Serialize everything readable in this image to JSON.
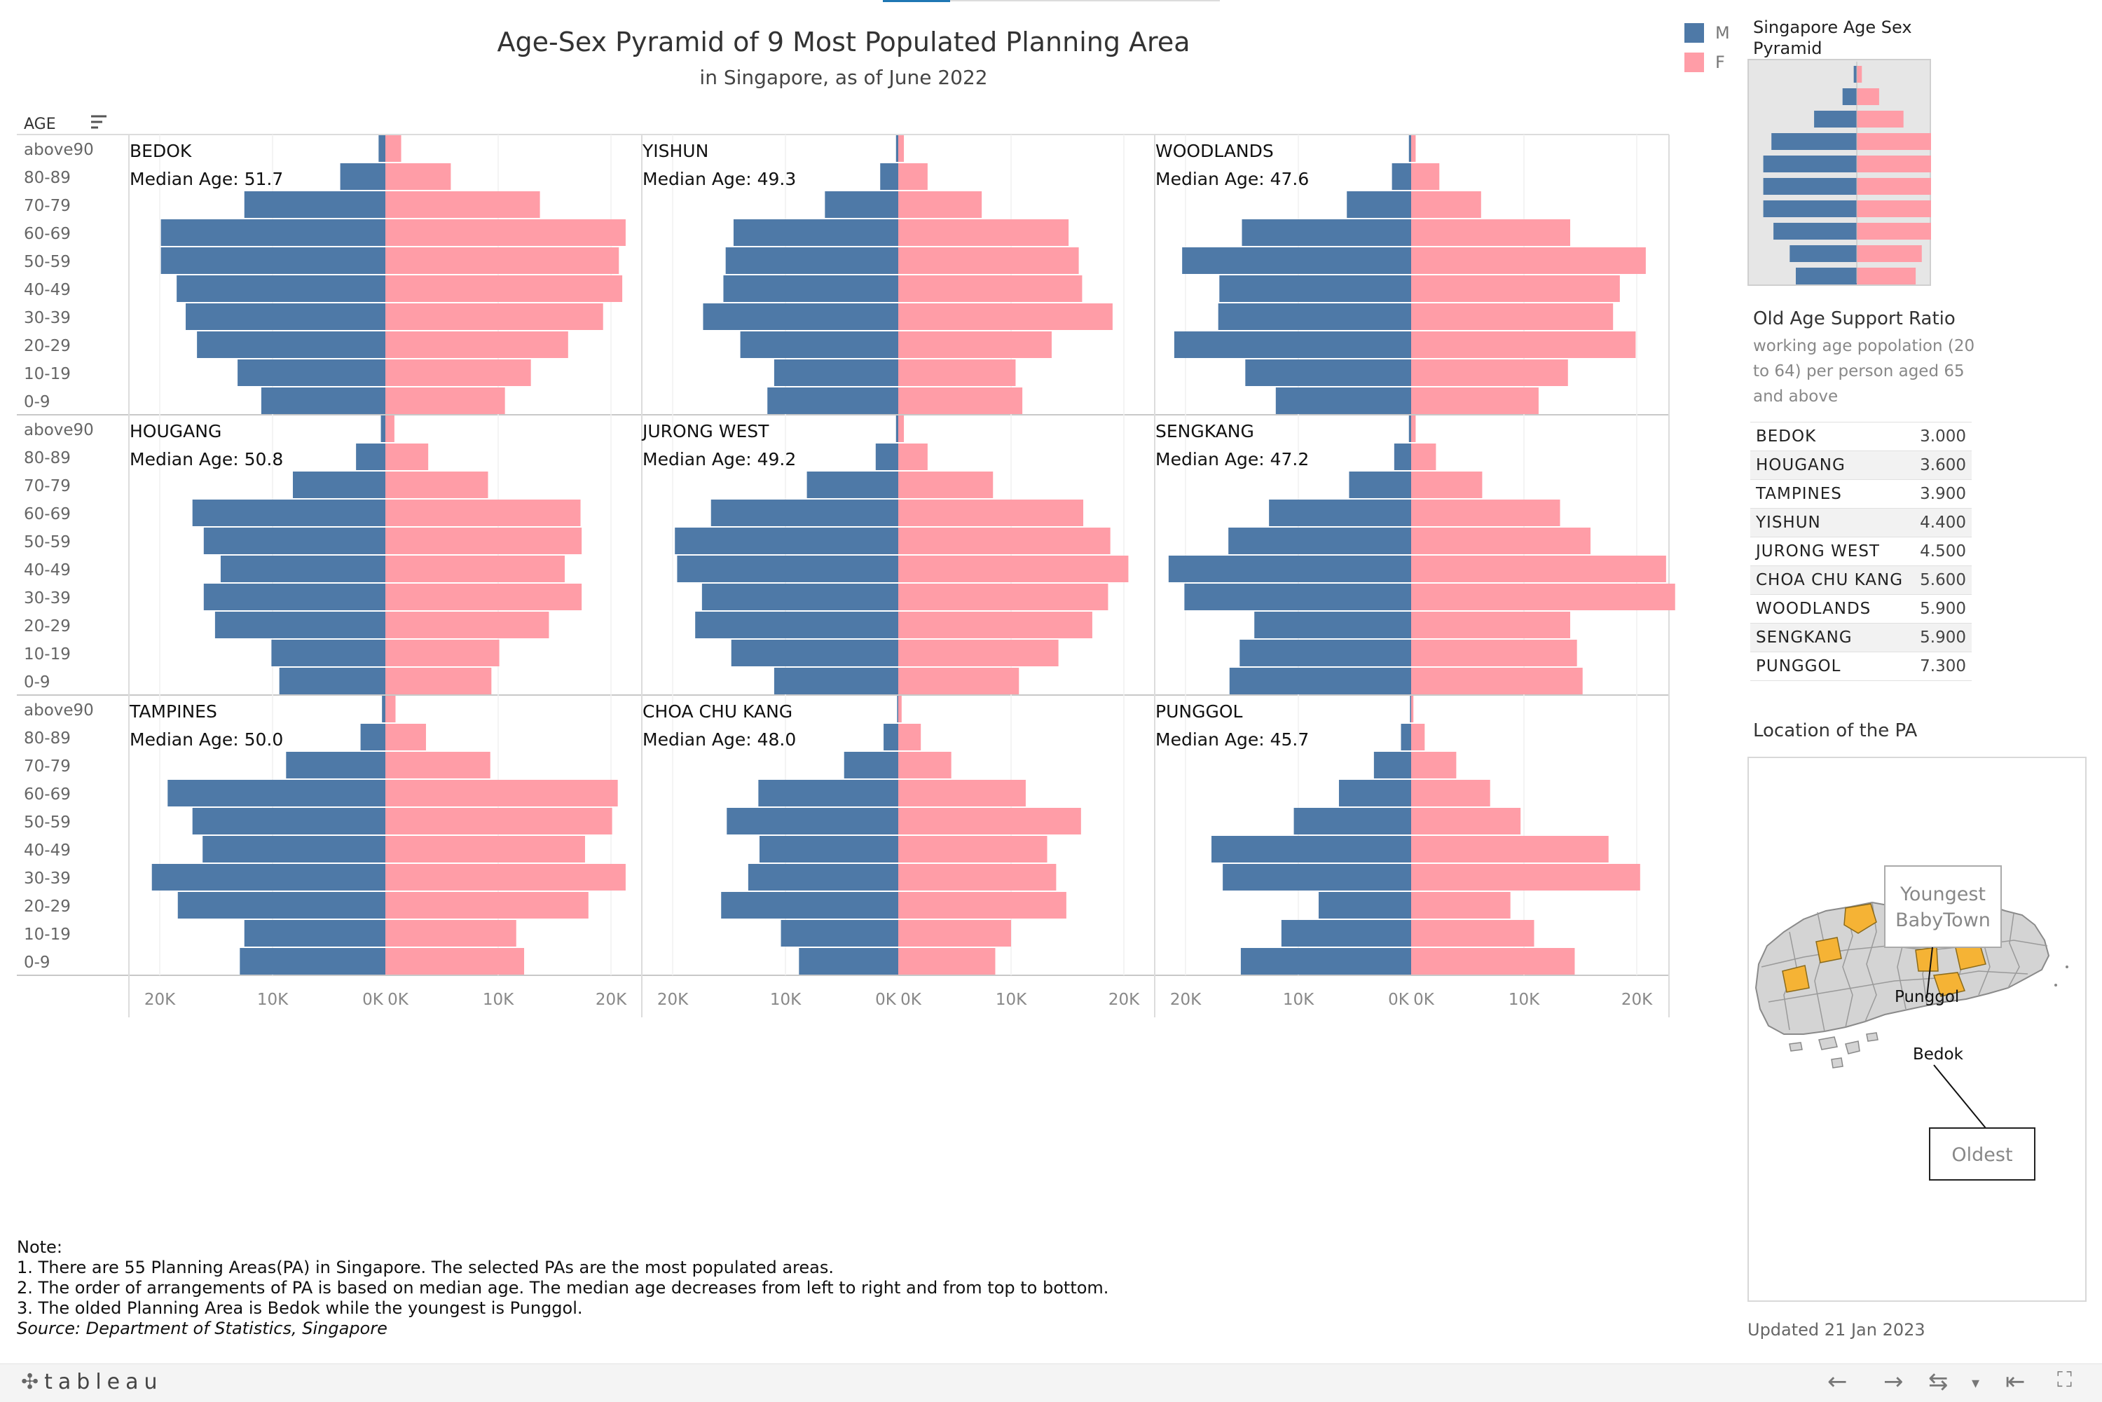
{
  "colors": {
    "male": "#4e79a7",
    "female": "#ff9da7",
    "highlight": "#f5b335",
    "map_gray": "#d4d4d4"
  },
  "header": {
    "title": "Age-Sex Pyramid of 9 Most Populated Planning Area",
    "subtitle": "in Singapore, as of June 2022"
  },
  "legend": {
    "items": [
      {
        "label": "M",
        "color": "#4e79a7"
      },
      {
        "label": "F",
        "color": "#ff9da7"
      }
    ]
  },
  "chart_data": [
    {
      "type": "bar",
      "layout": "population-pyramid-small-multiples",
      "row_header": "AGE",
      "age_groups": [
        "above90",
        "80-89",
        "70-79",
        "60-69",
        "50-59",
        "40-49",
        "30-39",
        "20-29",
        "10-19",
        "0-9"
      ],
      "x_tick_labels": [
        "20K",
        "10K",
        "0K",
        "0K",
        "10K",
        "20K"
      ],
      "xlim": [
        -22000,
        22000
      ],
      "median_label": "Median Age:",
      "areas": [
        {
          "name": "BEDOK",
          "median": "51.7",
          "male": [
            600,
            4000,
            12500,
            19900,
            19900,
            18500,
            17700,
            16700,
            13100,
            11000
          ],
          "female": [
            1400,
            5800,
            13700,
            21300,
            20700,
            21000,
            19300,
            16200,
            12900,
            10600
          ]
        },
        {
          "name": "YISHUN",
          "median": "49.3",
          "male": [
            200,
            1600,
            6500,
            14600,
            15300,
            15500,
            17300,
            14000,
            11000,
            11600
          ],
          "female": [
            500,
            2600,
            7400,
            15100,
            16000,
            16300,
            19000,
            13600,
            10400,
            11000
          ]
        },
        {
          "name": "WOODLANDS",
          "median": "47.6",
          "male": [
            200,
            1700,
            5700,
            15000,
            20300,
            17000,
            17100,
            21000,
            14700,
            12000
          ],
          "female": [
            400,
            2500,
            6200,
            14100,
            20800,
            18500,
            17900,
            19900,
            13900,
            11300
          ]
        },
        {
          "name": "HOUGANG",
          "median": "50.8",
          "male": [
            400,
            2600,
            8200,
            17100,
            16100,
            14600,
            16100,
            15100,
            10100,
            9400
          ],
          "female": [
            800,
            3800,
            9100,
            17300,
            17400,
            15900,
            17400,
            14500,
            10100,
            9400
          ]
        },
        {
          "name": "JURONG WEST",
          "median": "49.2",
          "male": [
            200,
            2000,
            8100,
            16600,
            19800,
            19600,
            17400,
            18000,
            14800,
            11000
          ],
          "female": [
            500,
            2600,
            8400,
            16400,
            18800,
            20400,
            18600,
            17200,
            14200,
            10700
          ]
        },
        {
          "name": "SENGKANG",
          "median": "47.2",
          "male": [
            200,
            1500,
            5500,
            12600,
            16200,
            21500,
            20100,
            13900,
            15200,
            16100
          ],
          "female": [
            400,
            2200,
            6300,
            13200,
            15900,
            22600,
            23400,
            14100,
            14700,
            15200
          ]
        },
        {
          "name": "TAMPINES",
          "median": "50.0",
          "male": [
            300,
            2200,
            8800,
            19300,
            17100,
            16200,
            20700,
            18400,
            12500,
            12900
          ],
          "female": [
            900,
            3600,
            9300,
            20600,
            20100,
            17700,
            21300,
            18000,
            11600,
            12300
          ]
        },
        {
          "name": "CHOA CHU KANG",
          "median": "48.0",
          "male": [
            100,
            1300,
            4800,
            12400,
            15200,
            12300,
            13300,
            15700,
            10400,
            8800
          ],
          "female": [
            300,
            2000,
            4700,
            11300,
            16200,
            13200,
            14000,
            14900,
            10000,
            8600
          ]
        },
        {
          "name": "PUNGGOL",
          "median": "45.7",
          "male": [
            100,
            900,
            3300,
            6400,
            10400,
            17700,
            16700,
            8200,
            11500,
            15100
          ],
          "female": [
            200,
            1200,
            4000,
            7000,
            9700,
            17500,
            20300,
            8800,
            10900,
            14500
          ]
        }
      ]
    },
    {
      "type": "bar",
      "title": "Singapore Age Sex Pyramid",
      "age_groups": [
        "above90",
        "80-89",
        "70-79",
        "60-69",
        "50-59",
        "40-49",
        "30-39",
        "20-29",
        "10-19",
        "0-9"
      ],
      "male": [
        1.5,
        7,
        21,
        42,
        46,
        46,
        46,
        41,
        33,
        30
      ],
      "female": [
        2.5,
        11,
        23,
        42,
        47,
        50,
        50,
        40,
        32,
        29
      ]
    },
    {
      "type": "table",
      "title": "Old Age Support Ratio",
      "description": "working age popolation (20 to 64) per person aged 65 and above",
      "rows": [
        {
          "area": "BEDOK",
          "value": "3.000"
        },
        {
          "area": "HOUGANG",
          "value": "3.600"
        },
        {
          "area": "TAMPINES",
          "value": "3.900"
        },
        {
          "area": "YISHUN",
          "value": "4.400"
        },
        {
          "area": "JURONG WEST",
          "value": "4.500"
        },
        {
          "area": "CHOA CHU KANG",
          "value": "5.600"
        },
        {
          "area": "WOODLANDS",
          "value": "5.900"
        },
        {
          "area": "SENGKANG",
          "value": "5.900"
        },
        {
          "area": "PUNGGOL",
          "value": "7.300"
        }
      ]
    }
  ],
  "map": {
    "title": "Location of the PA",
    "callout_top_line1": "Youngest",
    "callout_top_line2": "BabyTown",
    "callout_bottom": "Oldest",
    "label_punggol": "Punggol",
    "label_bedok": "Bedok"
  },
  "notes": {
    "heading": "Note:",
    "line1": "1. There are 55 Planning Areas(PA) in Singapore. The selected PAs are the most populated areas.",
    "line2": "2. The order of arrangements of PA is based on median age. The median age decreases from left to right and from top to bottom.",
    "line3": "3. The olded Planning Area is Bedok while the youngest is Punggol.",
    "source": "Source: Department of Statistics, Singapore"
  },
  "updated": "Updated 21 Jan 2023",
  "footer": {
    "brand": "tableau",
    "icons": [
      "undo-icon",
      "redo-icon",
      "revert-icon",
      "dropdown-icon",
      "reset-icon",
      "fullscreen-icon"
    ]
  }
}
